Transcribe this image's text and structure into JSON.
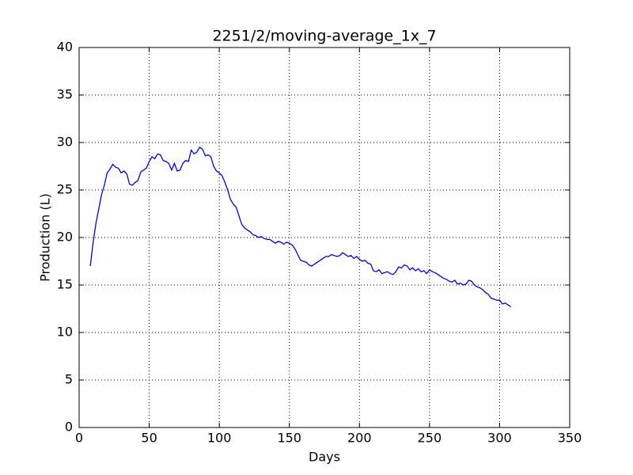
{
  "chart_data": {
    "type": "line",
    "title": "2251/2/moving-average_1x_7",
    "x_label": "Days",
    "y_label": "Production (L)",
    "x": [
      8,
      10,
      12,
      14,
      16,
      18,
      20,
      22,
      24,
      26,
      28,
      30,
      32,
      34,
      36,
      38,
      40,
      42,
      44,
      46,
      48,
      50,
      52,
      54,
      56,
      58,
      60,
      62,
      64,
      66,
      68,
      70,
      72,
      74,
      76,
      78,
      80,
      82,
      84,
      86,
      88,
      90,
      92,
      94,
      96,
      98,
      100,
      102,
      104,
      106,
      108,
      110,
      112,
      114,
      116,
      118,
      120,
      122,
      124,
      126,
      128,
      130,
      132,
      134,
      136,
      138,
      140,
      142,
      144,
      146,
      148,
      150,
      152,
      154,
      156,
      158,
      160,
      162,
      164,
      166,
      168,
      170,
      172,
      174,
      176,
      178,
      180,
      182,
      184,
      186,
      188,
      190,
      192,
      194,
      196,
      198,
      200,
      202,
      204,
      206,
      208,
      210,
      212,
      214,
      216,
      218,
      220,
      222,
      224,
      226,
      228,
      230,
      232,
      234,
      236,
      238,
      240,
      242,
      244,
      246,
      248,
      250,
      252,
      254,
      256,
      258,
      260,
      262,
      264,
      266,
      268,
      270,
      272,
      274,
      276,
      278,
      280,
      282,
      284,
      286,
      288,
      290,
      292,
      294,
      296,
      298,
      300,
      302,
      304,
      306,
      308
    ],
    "series": [
      {
        "color": "#0000ff",
        "values": [
          17.0,
          19.5,
          21.5,
          23,
          24.5,
          25.5,
          26.8,
          27.2,
          27.7,
          27.4,
          27.3,
          26.8,
          27.0,
          26.7,
          25.6,
          25.5,
          25.8,
          26.0,
          26.9,
          27.1,
          27.3,
          28.0,
          28.5,
          28.3,
          28.8,
          28.7,
          28.1,
          28.0,
          27.8,
          27.1,
          27.8,
          27.0,
          27.1,
          27.8,
          28.1,
          28.0,
          29.2,
          28.8,
          29.0,
          29.5,
          29.3,
          28.6,
          28.7,
          28.5,
          27.5,
          27.0,
          26.8,
          26.5,
          25.8,
          25.0,
          24.0,
          23.5,
          23.2,
          22.3,
          21.4,
          21.0,
          20.8,
          20.6,
          20.3,
          20.2,
          20.0,
          20.1,
          19.9,
          19.8,
          19.8,
          19.6,
          19.4,
          19.6,
          19.5,
          19.3,
          19.5,
          19.4,
          19.2,
          18.8,
          18.2,
          17.6,
          17.5,
          17.4,
          17.1,
          17.0,
          17.2,
          17.4,
          17.6,
          17.8,
          18.0,
          18.0,
          18.2,
          18.1,
          18.0,
          18.1,
          18.4,
          18.2,
          18.0,
          18.1,
          17.8,
          18.0,
          17.7,
          17.5,
          17.6,
          17.3,
          17.2,
          16.5,
          16.4,
          16.6,
          16.2,
          16.3,
          16.4,
          16.2,
          16.1,
          16.4,
          16.9,
          16.8,
          17.1,
          17.0,
          16.6,
          16.8,
          16.5,
          16.7,
          16.4,
          16.5,
          16.2,
          16.6,
          16.4,
          16.3,
          16.1,
          15.9,
          15.7,
          15.6,
          15.4,
          15.3,
          15.5,
          15.1,
          15.2,
          15.0,
          15.1,
          15.5,
          15.4,
          15.0,
          14.8,
          14.7,
          14.5,
          14.2,
          14.0,
          13.6,
          13.5,
          13.4,
          13.4,
          13.0,
          13.1,
          12.9,
          12.7
        ]
      }
    ],
    "xlim": [
      0,
      350
    ],
    "xticks": [
      0,
      50,
      100,
      150,
      200,
      250,
      300,
      350
    ],
    "ylim": [
      0,
      40
    ],
    "yticks": [
      0,
      5,
      10,
      15,
      20,
      25,
      30,
      35,
      40
    ],
    "grid": true
  }
}
